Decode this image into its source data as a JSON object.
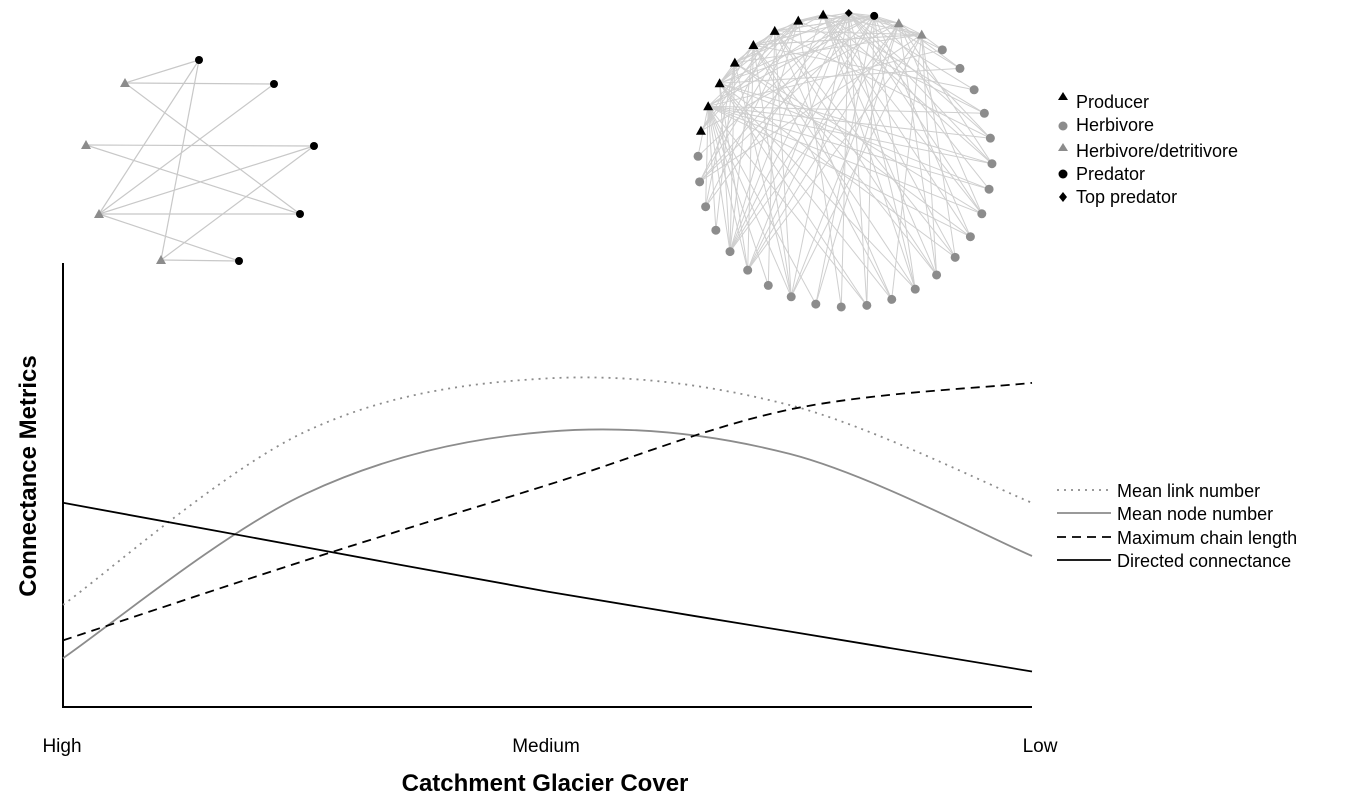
{
  "chart_data": {
    "type": "line",
    "xlabel": "Catchment Glacier Cover",
    "ylabel": "Connectance Metrics",
    "categories": [
      "High",
      "Medium",
      "Low"
    ],
    "x": [
      0,
      0.25,
      0.5,
      0.75,
      1
    ],
    "ylim": [
      0,
      1
    ],
    "grid": false,
    "legend_position": "right",
    "series": [
      {
        "name": "Mean link number",
        "style": "dotted",
        "color": "#8c8c8c",
        "values": [
          0.23,
          0.62,
          0.74,
          0.68,
          0.46
        ]
      },
      {
        "name": "Mean node number",
        "style": "solid",
        "color": "#8c8c8c",
        "values": [
          0.11,
          0.48,
          0.62,
          0.57,
          0.34
        ]
      },
      {
        "name": "Maximum chain length",
        "style": "dashed",
        "color": "#000000",
        "values": [
          0.15,
          0.33,
          0.5,
          0.67,
          0.73
        ]
      },
      {
        "name": "Directed connectance",
        "style": "solid",
        "color": "#000000",
        "values": [
          0.46,
          0.36,
          0.26,
          0.17,
          0.08
        ]
      }
    ],
    "species_legend": [
      {
        "label": "Producer",
        "marker": "triangle",
        "color": "#000000"
      },
      {
        "label": "Herbivore",
        "marker": "circle",
        "color": "#8c8c8c"
      },
      {
        "label": "Herbivore/detritivore",
        "marker": "triangle",
        "color": "#8c8c8c"
      },
      {
        "label": "Predator",
        "marker": "circle",
        "color": "#000000"
      },
      {
        "label": "Top predator",
        "marker": "diamond",
        "color": "#000000"
      }
    ],
    "networks": [
      {
        "position": "left",
        "nodes": [
          {
            "type": "predator"
          },
          {
            "type": "predator"
          },
          {
            "type": "predator"
          },
          {
            "type": "predator"
          },
          {
            "type": "predator"
          },
          {
            "type": "herbivore-detritivore"
          },
          {
            "type": "herbivore-detritivore"
          },
          {
            "type": "herbivore-detritivore"
          },
          {
            "type": "herbivore-detritivore"
          }
        ]
      },
      {
        "position": "right",
        "node_count": 36
      }
    ]
  }
}
